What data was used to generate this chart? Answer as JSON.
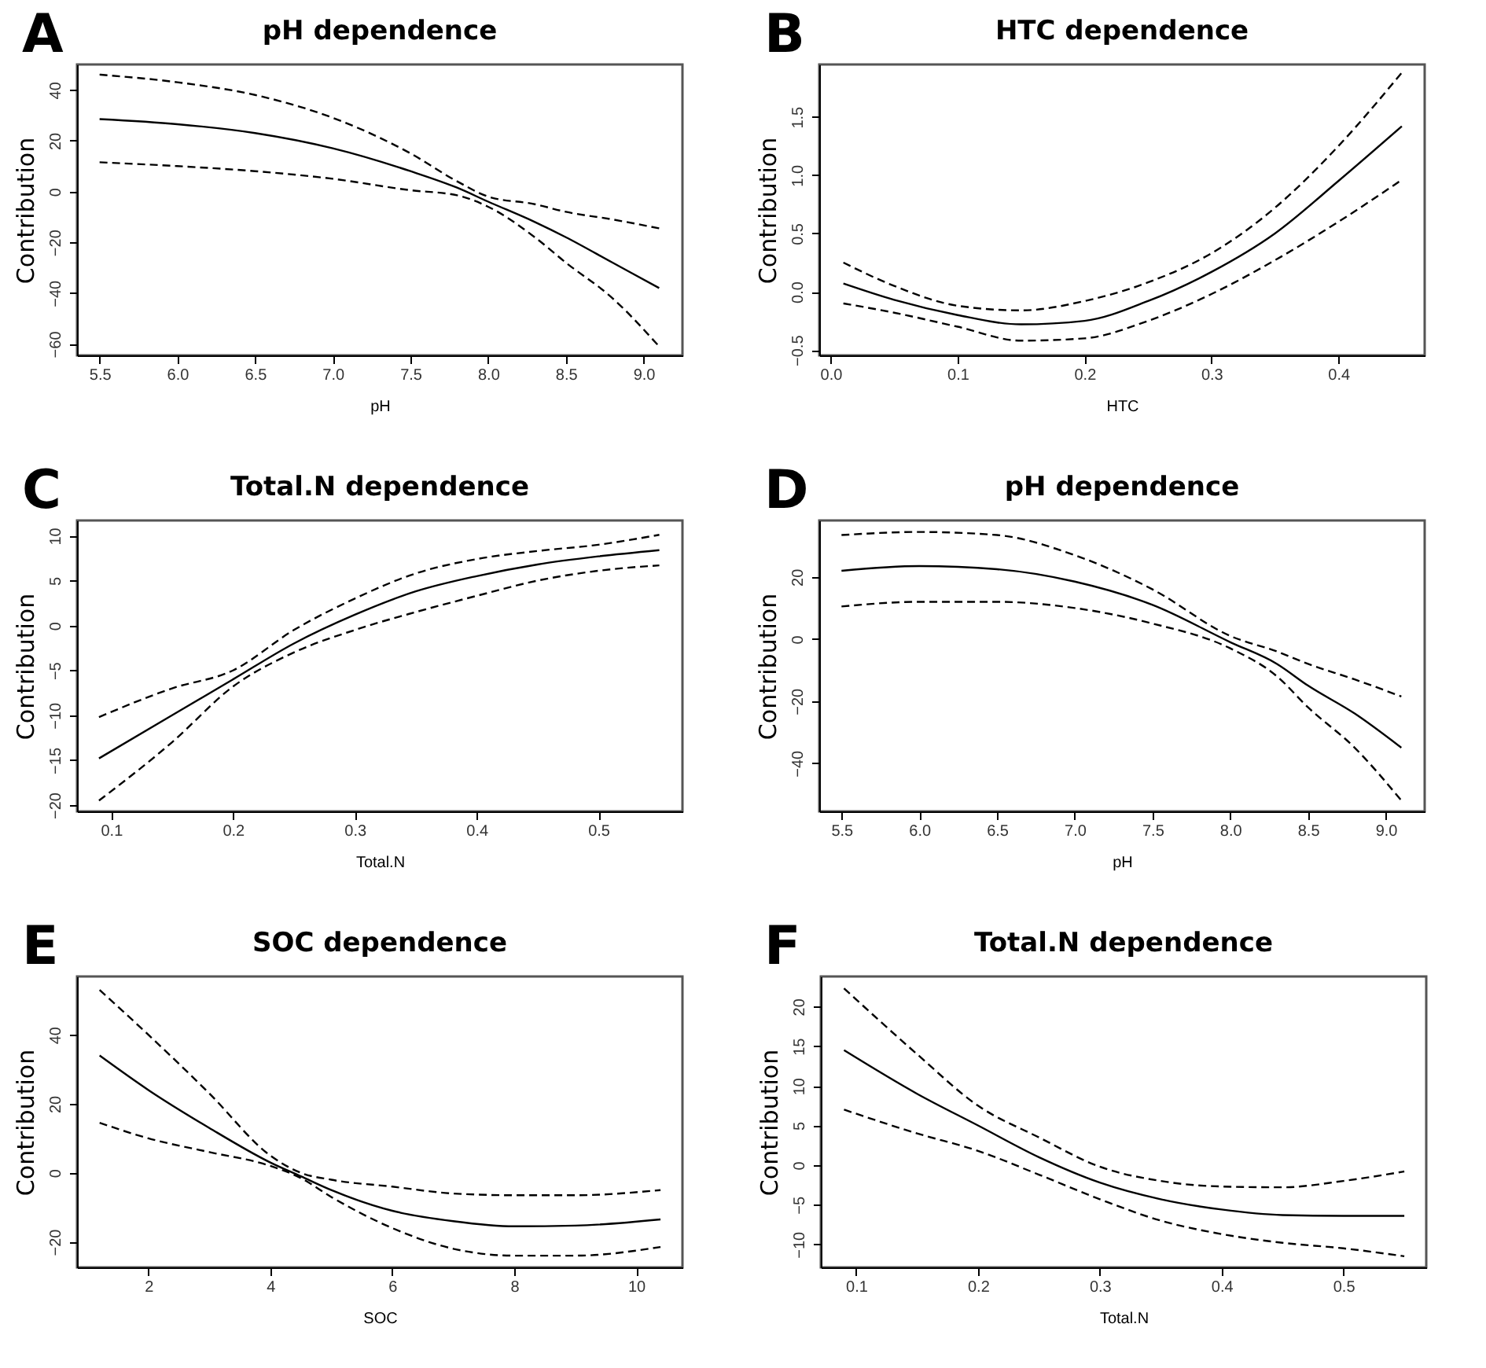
{
  "chart_data": [
    {
      "type": "line",
      "title": "pH dependence",
      "xlabel": "pH",
      "ylabel": "Contribution",
      "annotations": [
        "A"
      ],
      "xlim": [
        5.355,
        9.25
      ],
      "ylim": [
        -64.5,
        50
      ],
      "xticks": [
        5.5,
        {
          "value": 6,
          "label": "6.0"
        },
        6.5,
        {
          "value": 7,
          "label": "7.0"
        },
        7.5,
        {
          "value": 8,
          "label": "8.0"
        },
        8.5,
        {
          "value": 9,
          "label": "9.0"
        }
      ],
      "yticks": [
        -60,
        -40,
        -20,
        0,
        20,
        40
      ],
      "x": [
        5.5,
        6.0,
        6.5,
        7.0,
        7.5,
        7.8,
        8.0,
        8.3,
        8.5,
        8.8,
        9.1
      ],
      "series": [
        {
          "color": "#000000",
          "line_style": "solid",
          "values": [
            28.5,
            26.5,
            23,
            17,
            8,
            1.5,
            -4,
            -12,
            -18,
            -28,
            -38
          ]
        },
        {
          "color": "#000000",
          "line_style": "dashed",
          "values": [
            46,
            43,
            38,
            29,
            15,
            4,
            -2,
            -5,
            -8,
            -11,
            -14.5
          ]
        },
        {
          "color": "#000000",
          "line_style": "dashed",
          "values": [
            11.5,
            10,
            8,
            5,
            0.5,
            -1.5,
            -6,
            -18,
            -28,
            -42,
            -61
          ]
        }
      ]
    },
    {
      "type": "line",
      "title": "HTC dependence",
      "xlabel": "HTC",
      "ylabel": "Contribution",
      "annotations": [
        "B"
      ],
      "xlim": [
        -0.009,
        0.468
      ],
      "ylim": [
        -0.546,
        1.95
      ],
      "xticks": [
        {
          "value": 0,
          "label": "0.0"
        },
        0.1,
        0.2,
        0.3,
        0.4
      ],
      "yticks": [
        -0.5,
        {
          "value": 0,
          "label": "0.0"
        },
        0.5,
        {
          "value": 1,
          "label": "1.0"
        },
        1.5
      ],
      "x": [
        0.01,
        0.05,
        0.1,
        0.15,
        0.2,
        0.25,
        0.3,
        0.35,
        0.4,
        0.45
      ],
      "series": [
        {
          "color": "#000000",
          "line_style": "solid",
          "values": [
            0.07,
            -0.07,
            -0.2,
            -0.28,
            -0.25,
            -0.08,
            0.17,
            0.5,
            0.95,
            1.42
          ]
        },
        {
          "color": "#000000",
          "line_style": "dashed",
          "values": [
            0.25,
            0.05,
            -0.12,
            -0.16,
            -0.08,
            0.08,
            0.33,
            0.72,
            1.25,
            1.88
          ]
        },
        {
          "color": "#000000",
          "line_style": "dashed",
          "values": [
            -0.1,
            -0.18,
            -0.3,
            -0.42,
            -0.4,
            -0.25,
            -0.02,
            0.27,
            0.6,
            0.96
          ]
        }
      ]
    },
    {
      "type": "line",
      "title": "Total.N dependence",
      "xlabel": "Total.N",
      "ylabel": "Contribution",
      "annotations": [
        "C"
      ],
      "xlim": [
        0.072,
        0.569
      ],
      "ylim": [
        -20.7,
        11.7
      ],
      "xticks": [
        0.1,
        0.2,
        0.3,
        0.4,
        0.5
      ],
      "yticks": [
        -20,
        -15,
        -10,
        -5,
        0,
        5,
        10
      ],
      "x": [
        0.09,
        0.15,
        0.2,
        0.25,
        0.3,
        0.35,
        0.4,
        0.45,
        0.5,
        0.55
      ],
      "series": [
        {
          "color": "#000000",
          "line_style": "solid",
          "values": [
            -14.8,
            -10,
            -6,
            -2,
            1.2,
            3.8,
            5.5,
            6.8,
            7.7,
            8.4
          ]
        },
        {
          "color": "#000000",
          "line_style": "dashed",
          "values": [
            -10.2,
            -7,
            -5,
            -0.5,
            3,
            5.8,
            7.4,
            8.3,
            9,
            10.1
          ]
        },
        {
          "color": "#000000",
          "line_style": "dashed",
          "values": [
            -19.5,
            -13,
            -6.8,
            -3,
            -0.5,
            1.5,
            3.3,
            5,
            6.1,
            6.7
          ]
        }
      ]
    },
    {
      "type": "line",
      "title": "pH dependence",
      "xlabel": "pH",
      "ylabel": "Contribution",
      "annotations": [
        "D"
      ],
      "xlim": [
        5.357,
        9.25
      ],
      "ylim": [
        -55.5,
        38.2
      ],
      "xticks": [
        5.5,
        {
          "value": 6,
          "label": "6.0"
        },
        6.5,
        {
          "value": 7,
          "label": "7.0"
        },
        7.5,
        {
          "value": 8,
          "label": "8.0"
        },
        8.5,
        {
          "value": 9,
          "label": "9.0"
        }
      ],
      "yticks": [
        -40,
        -20,
        0,
        20
      ],
      "x": [
        5.5,
        6.0,
        6.5,
        7.0,
        7.5,
        8.0,
        8.3,
        8.5,
        8.8,
        9.1
      ],
      "series": [
        {
          "color": "#000000",
          "line_style": "solid",
          "values": [
            22,
            23.5,
            22.5,
            18.5,
            11,
            -1,
            -8,
            -15,
            -24,
            -35
          ]
        },
        {
          "color": "#000000",
          "line_style": "dashed",
          "values": [
            33.5,
            34.5,
            33.5,
            27,
            16,
            1,
            -4,
            -8,
            -13,
            -18.5
          ]
        },
        {
          "color": "#000000",
          "line_style": "dashed",
          "values": [
            10.5,
            12,
            12,
            10,
            5,
            -3,
            -12,
            -22,
            -35,
            -52
          ]
        }
      ]
    },
    {
      "type": "line",
      "title": "SOC dependence",
      "xlabel": "SOC",
      "ylabel": "Contribution",
      "annotations": [
        "E"
      ],
      "xlim": [
        0.83,
        10.76
      ],
      "ylim": [
        -27.4,
        56.9
      ],
      "xticks": [
        2,
        4,
        6,
        8,
        10
      ],
      "yticks": [
        -20,
        0,
        20,
        40
      ],
      "x": [
        1.2,
        2,
        3,
        4,
        4.5,
        5,
        6,
        7,
        8,
        9,
        10.4
      ],
      "series": [
        {
          "color": "#000000",
          "line_style": "solid",
          "values": [
            34,
            24,
            13,
            3,
            -1,
            -5,
            -11,
            -14,
            -15.5,
            -15.3,
            -13.5
          ]
        },
        {
          "color": "#000000",
          "line_style": "dashed",
          "values": [
            53,
            40,
            23,
            5,
            0,
            -2,
            -4,
            -6,
            -6.5,
            -6.5,
            -5
          ]
        },
        {
          "color": "#000000",
          "line_style": "dashed",
          "values": [
            14.5,
            10,
            6,
            2,
            -1.5,
            -7,
            -16,
            -22,
            -24,
            -24,
            -21.5
          ]
        }
      ]
    },
    {
      "type": "line",
      "title": "Total.N dependence",
      "xlabel": "Total.N",
      "ylabel": "Contribution",
      "annotations": [
        "F"
      ],
      "xlim": [
        0.071,
        0.568
      ],
      "ylim": [
        -12.9,
        23.8
      ],
      "xticks": [
        0.1,
        0.2,
        0.3,
        0.4,
        0.5
      ],
      "yticks": [
        -10,
        -5,
        0,
        5,
        10,
        15,
        20
      ],
      "x": [
        0.09,
        0.15,
        0.2,
        0.25,
        0.3,
        0.35,
        0.4,
        0.45,
        0.5,
        0.55
      ],
      "series": [
        {
          "color": "#000000",
          "line_style": "solid",
          "values": [
            14.5,
            9,
            5,
            1,
            -2.2,
            -4.3,
            -5.6,
            -6.3,
            -6.4,
            -6.4
          ]
        },
        {
          "color": "#000000",
          "line_style": "dashed",
          "values": [
            22.3,
            14,
            7.5,
            3.5,
            -0.2,
            -2,
            -2.7,
            -2.8,
            -2,
            -0.8
          ]
        },
        {
          "color": "#000000",
          "line_style": "dashed",
          "values": [
            7,
            4,
            1.8,
            -1.2,
            -4.3,
            -7,
            -8.7,
            -9.8,
            -10.5,
            -11.5
          ]
        }
      ]
    }
  ]
}
